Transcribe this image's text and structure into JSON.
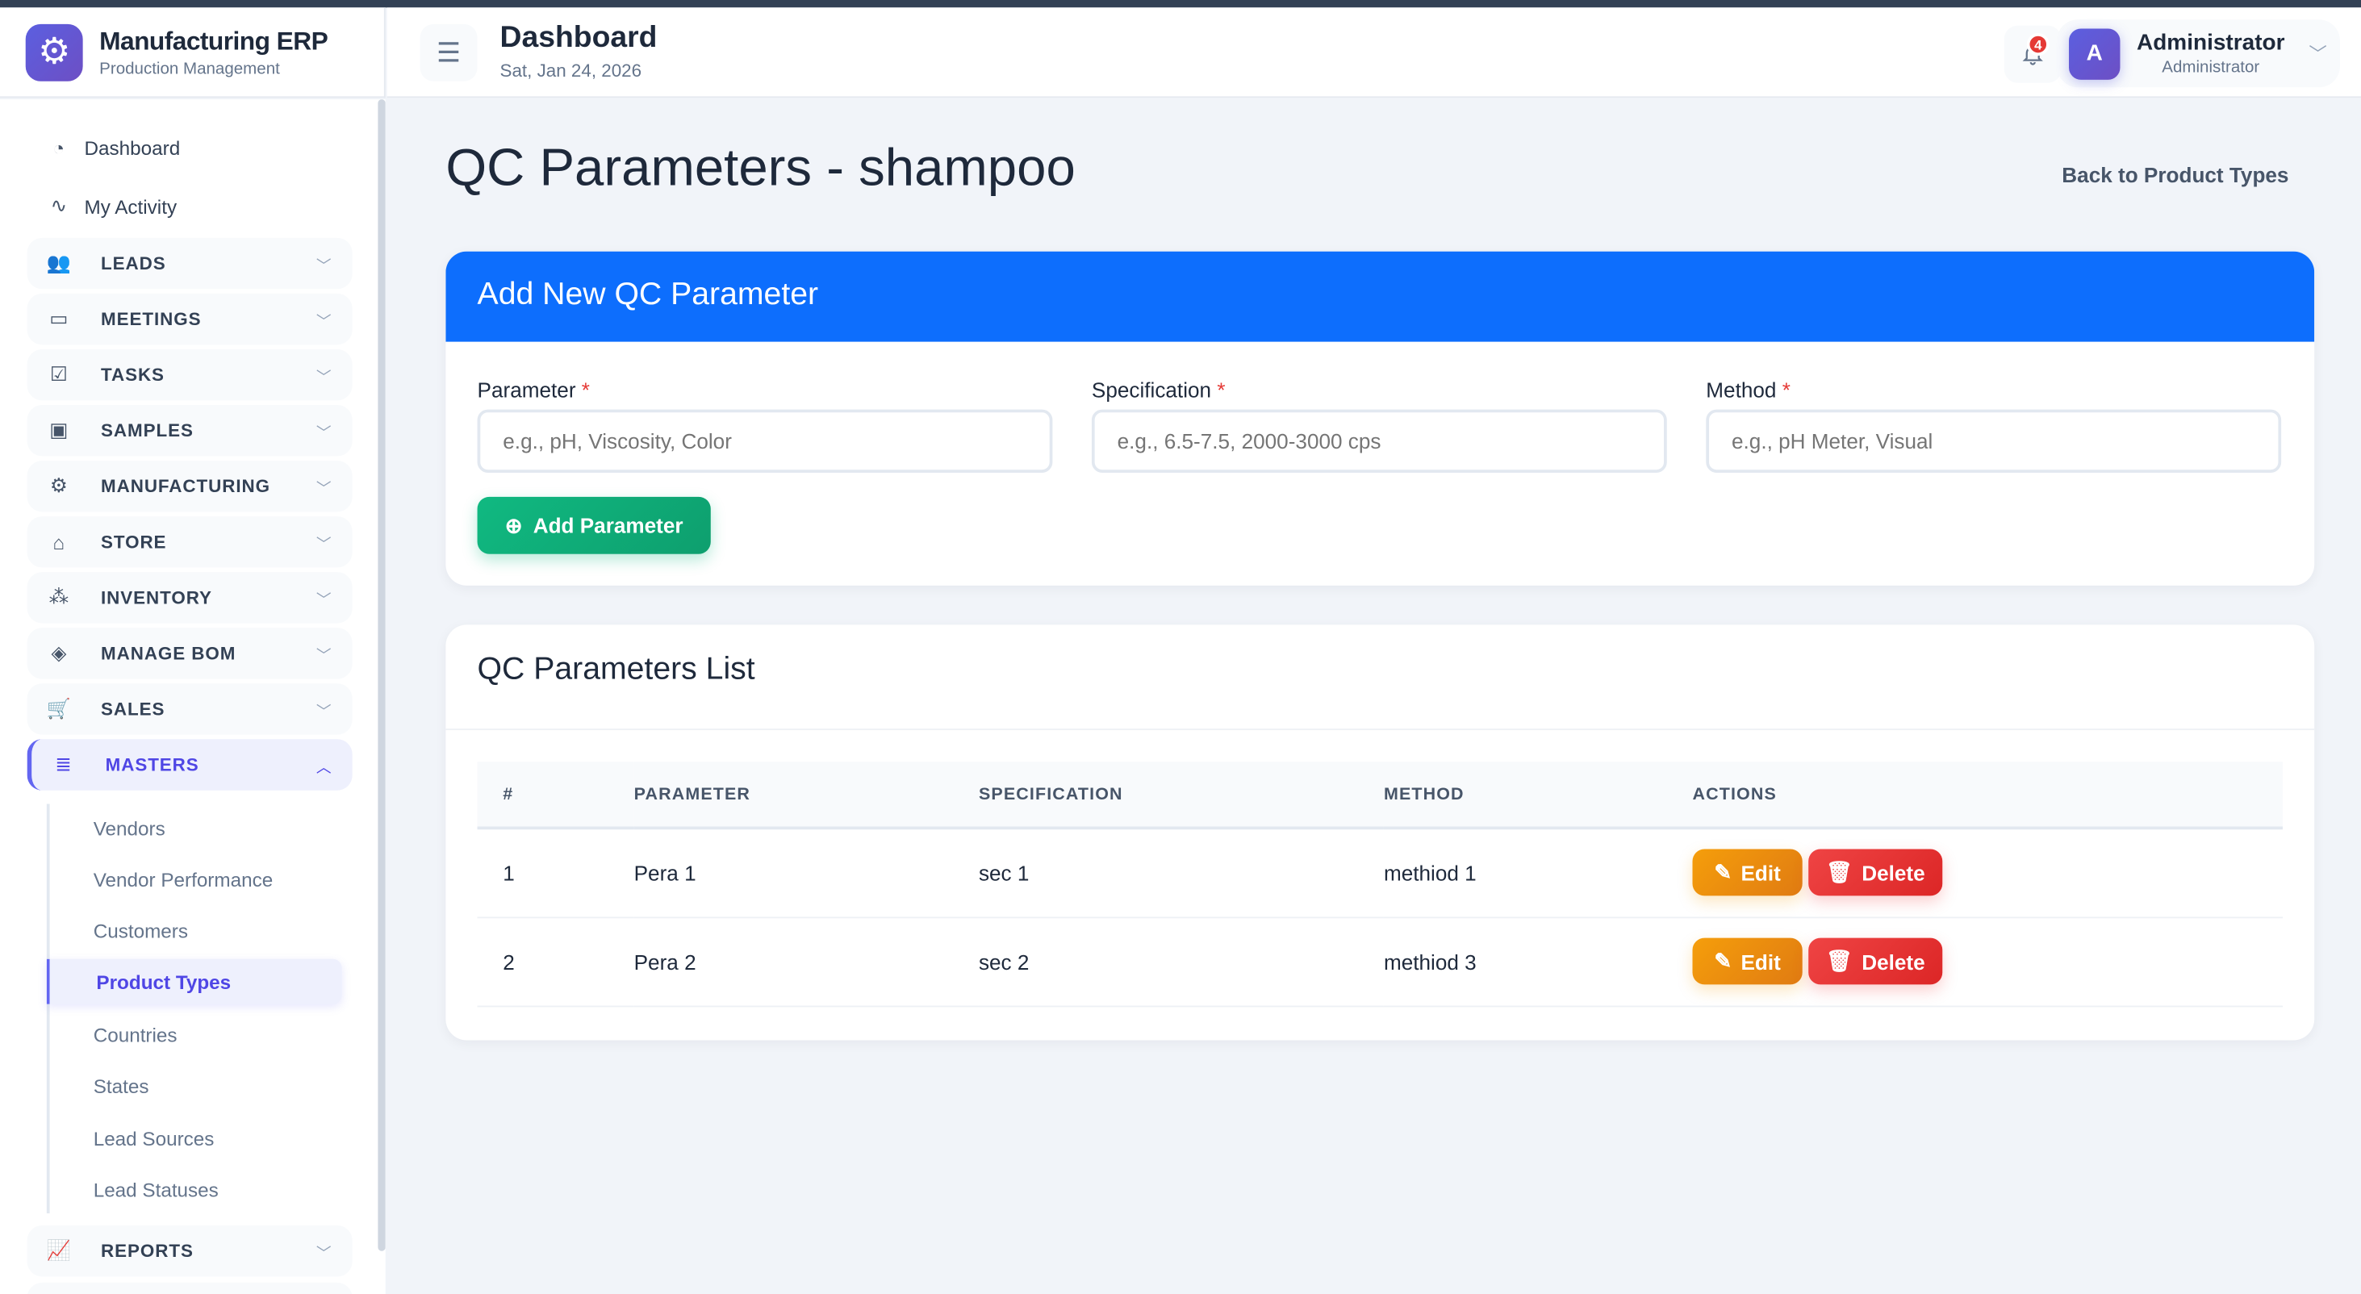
{
  "brand": {
    "title": "Manufacturing ERP",
    "subtitle": "Production Management",
    "logo_icon": "gear-icon"
  },
  "header": {
    "title": "Dashboard",
    "date": "Sat, Jan 24, 2026",
    "notifications": "4",
    "user_name": "Administrator",
    "user_role": "Administrator",
    "avatar": "A"
  },
  "sidebar": {
    "plain": [
      {
        "label": "Dashboard",
        "icon": "gauge-icon"
      },
      {
        "label": "My Activity",
        "icon": "activity-icon"
      }
    ],
    "groups": [
      {
        "label": "LEADS"
      },
      {
        "label": "MEETINGS"
      },
      {
        "label": "TASKS"
      },
      {
        "label": "SAMPLES"
      },
      {
        "label": "MANUFACTURING"
      },
      {
        "label": "STORE"
      },
      {
        "label": "INVENTORY"
      },
      {
        "label": "MANAGE BOM"
      },
      {
        "label": "SALES"
      },
      {
        "label": "MASTERS"
      }
    ],
    "masters_items": [
      "Vendors",
      "Vendor Performance",
      "Customers",
      "Product Types",
      "Countries",
      "States",
      "Lead Sources",
      "Lead Statuses"
    ],
    "active_item": "Product Types",
    "reports": "REPORTS"
  },
  "page": {
    "title": "QC Parameters - shampoo",
    "back_link": "Back to Product Types"
  },
  "add_form": {
    "title": "Add New QC Parameter",
    "fields": [
      {
        "label": "Parameter",
        "required": "*",
        "placeholder": "e.g., pH, Viscosity, Color"
      },
      {
        "label": "Specification",
        "required": "*",
        "placeholder": "e.g., 6.5-7.5, 2000-3000 cps"
      },
      {
        "label": "Method",
        "required": "*",
        "placeholder": "e.g., pH Meter, Visual"
      }
    ],
    "submit": "Add Parameter",
    "header_color": "#0d6efd"
  },
  "list": {
    "title": "QC Parameters List",
    "columns": [
      "#",
      "PARAMETER",
      "SPECIFICATION",
      "METHOD",
      "ACTIONS"
    ],
    "rows": [
      {
        "num": "1",
        "parameter": "Pera 1",
        "specification": "sec 1",
        "method": "methiod 1"
      },
      {
        "num": "2",
        "parameter": "Pera 2",
        "specification": "sec 2",
        "method": "methiod 3"
      }
    ],
    "edit_label": "Edit",
    "delete_label": "Delete"
  }
}
